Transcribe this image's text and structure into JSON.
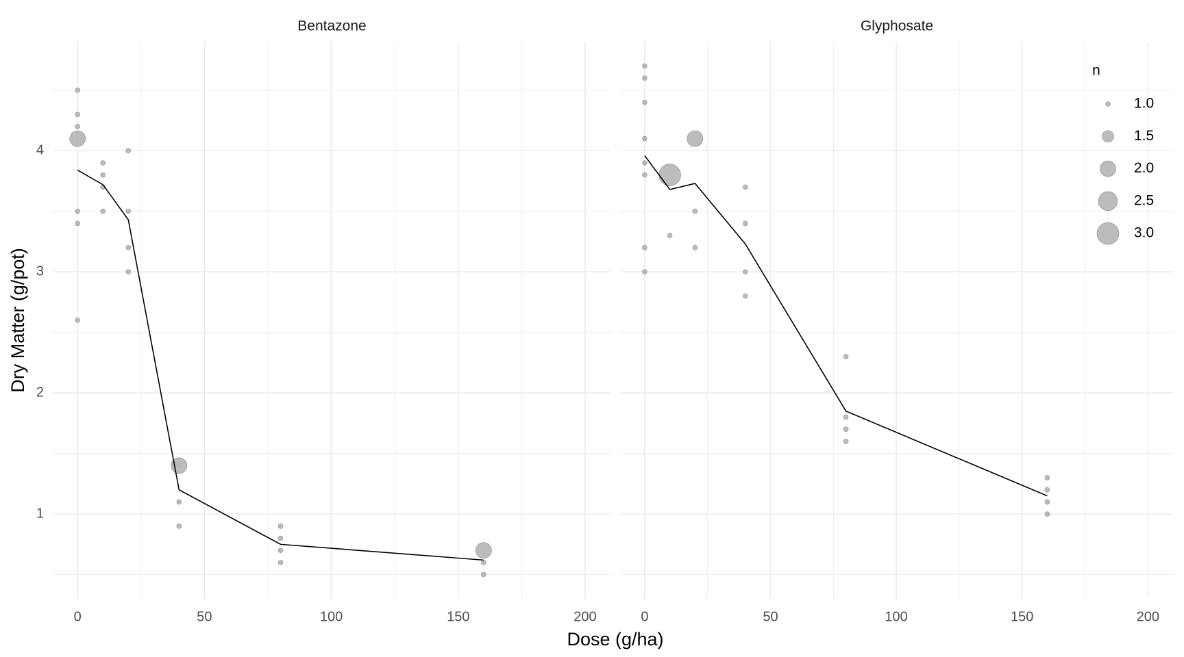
{
  "chart_data": {
    "type": "scatter",
    "x_label": "Dose (g/ha)",
    "y_label": "Dry Matter (g/pot)",
    "xlim": [
      -9.5,
      210
    ],
    "ylim": [
      0.3,
      4.9
    ],
    "xticks": [
      0,
      50,
      100,
      150,
      200
    ],
    "yticks": [
      1,
      2,
      3,
      4
    ],
    "minor_xticks": [
      25,
      75,
      125,
      175
    ],
    "minor_yticks": [
      0.5,
      1.5,
      2.5,
      3.5,
      4.5
    ],
    "grid": true,
    "point_color": "#a6a6a6",
    "line_color": "#000000",
    "facets": [
      {
        "title": "Bentazone",
        "points": {
          "x": [
            0,
            0,
            0,
            0,
            0,
            0,
            0,
            10,
            10,
            10,
            10,
            20,
            20,
            20,
            20,
            40,
            40,
            40,
            80,
            80,
            80,
            80,
            160,
            160,
            160
          ],
          "y": [
            4.5,
            4.3,
            4.2,
            4.1,
            3.5,
            3.4,
            2.6,
            3.9,
            3.8,
            3.7,
            3.5,
            4.0,
            3.5,
            3.2,
            3.0,
            1.4,
            1.1,
            0.9,
            0.9,
            0.8,
            0.7,
            0.6,
            0.7,
            0.6,
            0.5
          ],
          "n": [
            1,
            1,
            1,
            2,
            1,
            1,
            1,
            1,
            1,
            1,
            1,
            1,
            1,
            1,
            1,
            2,
            1,
            1,
            1,
            1,
            1,
            1,
            2,
            1,
            1
          ]
        },
        "line": {
          "x": [
            0,
            10,
            20,
            40,
            80,
            160
          ],
          "y": [
            3.84,
            3.72,
            3.43,
            1.2,
            0.75,
            0.62
          ]
        }
      },
      {
        "title": "Glyphosate",
        "points": {
          "x": [
            0,
            0,
            0,
            0,
            0,
            0,
            0,
            0,
            10,
            10,
            20,
            20,
            20,
            40,
            40,
            40,
            40,
            80,
            80,
            80,
            80,
            160,
            160,
            160,
            160
          ],
          "y": [
            4.7,
            4.6,
            4.4,
            4.1,
            3.9,
            3.8,
            3.2,
            3.0,
            3.8,
            3.3,
            4.1,
            3.5,
            3.2,
            3.7,
            3.4,
            3.0,
            2.8,
            2.3,
            1.8,
            1.7,
            1.6,
            1.3,
            1.2,
            1.1,
            1.0
          ],
          "n": [
            1,
            1,
            1,
            1,
            1,
            1,
            1,
            1,
            3,
            1,
            2,
            1,
            1,
            1,
            1,
            1,
            1,
            1,
            1,
            1,
            1,
            1,
            1,
            1,
            1
          ]
        },
        "line": {
          "x": [
            0,
            10,
            20,
            40,
            80,
            160
          ],
          "y": [
            3.96,
            3.68,
            3.73,
            3.23,
            1.85,
            1.15
          ]
        }
      }
    ],
    "legend": {
      "title": "n",
      "values": [
        {
          "value": 1,
          "label": "1.0"
        },
        {
          "value": 1.5,
          "label": "1.5"
        },
        {
          "value": 2,
          "label": "2.0"
        },
        {
          "value": 2.5,
          "label": "2.5"
        },
        {
          "value": 3,
          "label": "3.0"
        }
      ]
    }
  }
}
